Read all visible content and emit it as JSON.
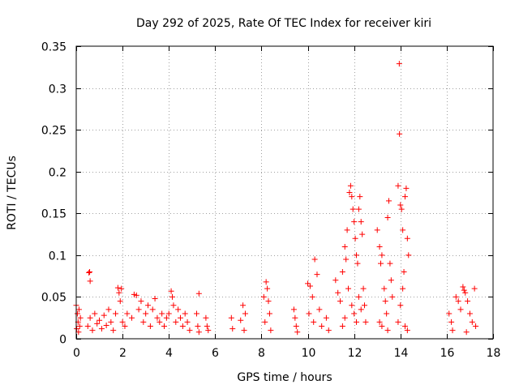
{
  "chart_data": {
    "type": "scatter",
    "title": "Day 292 of 2025, Rate Of TEC Index for receiver kiri",
    "xlabel": "GPS time / hours",
    "ylabel": "ROTI / TECUs",
    "xlim": [
      0,
      18
    ],
    "ylim": [
      0,
      0.35
    ],
    "xticks": [
      0,
      2,
      4,
      6,
      8,
      10,
      12,
      14,
      16,
      18
    ],
    "xtick_labels": [
      "0",
      "2",
      "4",
      "6",
      "8",
      "10",
      "12",
      "14",
      "16",
      "18"
    ],
    "yticks": [
      0,
      0.05,
      0.1,
      0.15,
      0.2,
      0.25,
      0.3,
      0.35
    ],
    "ytick_labels": [
      "0",
      "0.05",
      "0.1",
      "0.15",
      "0.2",
      "0.25",
      "0.3",
      "0.35"
    ],
    "grid": true,
    "marker": "+",
    "series": [
      {
        "name": "ROTI",
        "color": "#ff0000",
        "points": [
          [
            0.0,
            0.04
          ],
          [
            0.02,
            0.012
          ],
          [
            0.05,
            0.03
          ],
          [
            0.08,
            0.02
          ],
          [
            0.1,
            0.008
          ],
          [
            0.12,
            0.035
          ],
          [
            0.15,
            0.015
          ],
          [
            0.18,
            0.025
          ],
          [
            0.55,
            0.079
          ],
          [
            0.6,
            0.069
          ],
          [
            0.58,
            0.08
          ],
          [
            0.5,
            0.015
          ],
          [
            0.6,
            0.025
          ],
          [
            0.7,
            0.01
          ],
          [
            0.8,
            0.03
          ],
          [
            0.9,
            0.018
          ],
          [
            1.0,
            0.022
          ],
          [
            1.1,
            0.012
          ],
          [
            1.2,
            0.028
          ],
          [
            1.3,
            0.016
          ],
          [
            1.4,
            0.035
          ],
          [
            1.5,
            0.02
          ],
          [
            1.6,
            0.01
          ],
          [
            1.7,
            0.03
          ],
          [
            1.8,
            0.061
          ],
          [
            1.85,
            0.055
          ],
          [
            1.9,
            0.045
          ],
          [
            1.95,
            0.06
          ],
          [
            2.0,
            0.02
          ],
          [
            2.1,
            0.015
          ],
          [
            2.2,
            0.03
          ],
          [
            2.5,
            0.053
          ],
          [
            2.6,
            0.052
          ],
          [
            2.4,
            0.025
          ],
          [
            2.7,
            0.035
          ],
          [
            2.8,
            0.045
          ],
          [
            2.9,
            0.02
          ],
          [
            3.0,
            0.03
          ],
          [
            3.1,
            0.04
          ],
          [
            3.2,
            0.015
          ],
          [
            3.3,
            0.035
          ],
          [
            3.4,
            0.048
          ],
          [
            3.5,
            0.025
          ],
          [
            3.6,
            0.02
          ],
          [
            3.7,
            0.03
          ],
          [
            3.8,
            0.015
          ],
          [
            3.9,
            0.025
          ],
          [
            4.1,
            0.057
          ],
          [
            4.15,
            0.05
          ],
          [
            4.2,
            0.04
          ],
          [
            4.0,
            0.03
          ],
          [
            4.3,
            0.02
          ],
          [
            4.4,
            0.035
          ],
          [
            4.5,
            0.025
          ],
          [
            4.6,
            0.015
          ],
          [
            4.7,
            0.03
          ],
          [
            4.8,
            0.02
          ],
          [
            4.9,
            0.01
          ],
          [
            5.3,
            0.054
          ],
          [
            5.2,
            0.03
          ],
          [
            5.25,
            0.015
          ],
          [
            5.3,
            0.008
          ],
          [
            5.6,
            0.025
          ],
          [
            5.65,
            0.015
          ],
          [
            5.7,
            0.01
          ],
          [
            6.7,
            0.025
          ],
          [
            6.75,
            0.012
          ],
          [
            7.1,
            0.022
          ],
          [
            7.2,
            0.04
          ],
          [
            7.3,
            0.03
          ],
          [
            7.25,
            0.01
          ],
          [
            8.1,
            0.05
          ],
          [
            8.2,
            0.068
          ],
          [
            8.25,
            0.06
          ],
          [
            8.3,
            0.045
          ],
          [
            8.35,
            0.03
          ],
          [
            8.15,
            0.02
          ],
          [
            8.4,
            0.01
          ],
          [
            9.4,
            0.035
          ],
          [
            9.45,
            0.025
          ],
          [
            9.5,
            0.015
          ],
          [
            9.55,
            0.008
          ],
          [
            10.0,
            0.066
          ],
          [
            10.1,
            0.063
          ],
          [
            10.2,
            0.05
          ],
          [
            10.3,
            0.095
          ],
          [
            10.4,
            0.077
          ],
          [
            10.05,
            0.03
          ],
          [
            10.25,
            0.02
          ],
          [
            10.5,
            0.035
          ],
          [
            10.6,
            0.015
          ],
          [
            10.8,
            0.025
          ],
          [
            10.9,
            0.01
          ],
          [
            11.2,
            0.07
          ],
          [
            11.3,
            0.055
          ],
          [
            11.4,
            0.045
          ],
          [
            11.5,
            0.08
          ],
          [
            11.6,
            0.11
          ],
          [
            11.65,
            0.095
          ],
          [
            11.7,
            0.13
          ],
          [
            11.8,
            0.175
          ],
          [
            11.85,
            0.183
          ],
          [
            11.9,
            0.17
          ],
          [
            11.95,
            0.155
          ],
          [
            12.0,
            0.14
          ],
          [
            12.05,
            0.12
          ],
          [
            12.1,
            0.1
          ],
          [
            12.15,
            0.09
          ],
          [
            12.2,
            0.155
          ],
          [
            12.25,
            0.17
          ],
          [
            12.3,
            0.14
          ],
          [
            12.35,
            0.125
          ],
          [
            11.75,
            0.06
          ],
          [
            11.9,
            0.04
          ],
          [
            12.0,
            0.03
          ],
          [
            12.1,
            0.02
          ],
          [
            12.2,
            0.05
          ],
          [
            12.3,
            0.035
          ],
          [
            11.6,
            0.025
          ],
          [
            11.5,
            0.015
          ],
          [
            12.4,
            0.06
          ],
          [
            12.45,
            0.04
          ],
          [
            12.5,
            0.02
          ],
          [
            13.0,
            0.13
          ],
          [
            13.1,
            0.11
          ],
          [
            13.2,
            0.1
          ],
          [
            13.15,
            0.09
          ],
          [
            13.3,
            0.06
          ],
          [
            13.35,
            0.045
          ],
          [
            13.4,
            0.03
          ],
          [
            13.45,
            0.145
          ],
          [
            13.5,
            0.165
          ],
          [
            13.55,
            0.09
          ],
          [
            13.6,
            0.07
          ],
          [
            13.65,
            0.05
          ],
          [
            13.1,
            0.02
          ],
          [
            13.2,
            0.015
          ],
          [
            13.45,
            0.01
          ],
          [
            13.95,
            0.329
          ],
          [
            13.96,
            0.245
          ],
          [
            13.9,
            0.183
          ],
          [
            14.0,
            0.16
          ],
          [
            14.05,
            0.155
          ],
          [
            14.1,
            0.13
          ],
          [
            14.2,
            0.17
          ],
          [
            14.25,
            0.18
          ],
          [
            14.3,
            0.12
          ],
          [
            14.35,
            0.1
          ],
          [
            14.15,
            0.08
          ],
          [
            14.1,
            0.06
          ],
          [
            14.0,
            0.04
          ],
          [
            13.9,
            0.02
          ],
          [
            14.2,
            0.015
          ],
          [
            14.3,
            0.01
          ],
          [
            16.1,
            0.03
          ],
          [
            16.2,
            0.02
          ],
          [
            16.25,
            0.01
          ],
          [
            16.4,
            0.05
          ],
          [
            16.5,
            0.045
          ],
          [
            16.6,
            0.035
          ],
          [
            16.7,
            0.062
          ],
          [
            16.75,
            0.058
          ],
          [
            16.8,
            0.055
          ],
          [
            16.9,
            0.045
          ],
          [
            17.0,
            0.03
          ],
          [
            17.1,
            0.02
          ],
          [
            17.2,
            0.06
          ],
          [
            17.25,
            0.015
          ],
          [
            16.85,
            0.008
          ]
        ]
      }
    ]
  }
}
